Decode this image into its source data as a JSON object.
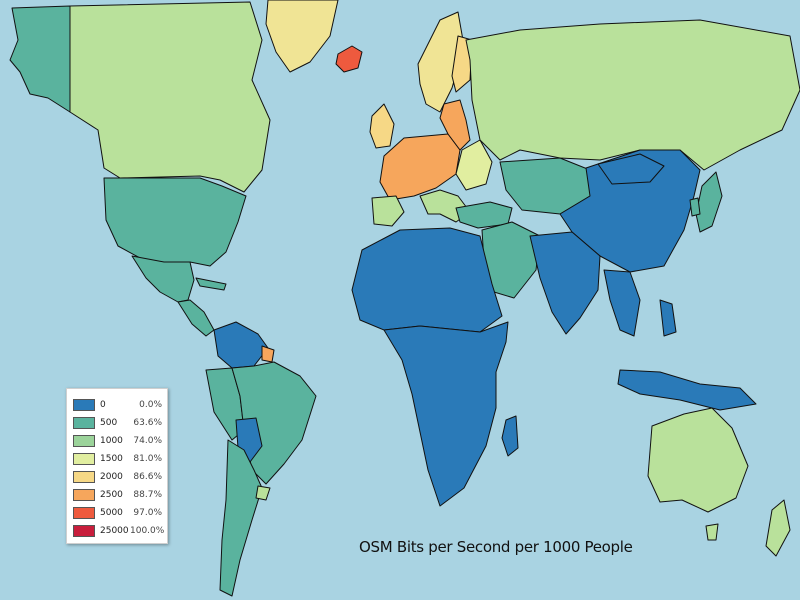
{
  "map": {
    "title": "OSM Bits per Second per 1000 People",
    "ocean_color": "#a9d3e2",
    "border_color": "#111111"
  },
  "legend": {
    "items": [
      {
        "value": "0",
        "percent": "0.0%",
        "color": "#2a7ab8"
      },
      {
        "value": "500",
        "percent": "63.6%",
        "color": "#5ab39e"
      },
      {
        "value": "1000",
        "percent": "74.0%",
        "color": "#9bd39a"
      },
      {
        "value": "1500",
        "percent": "81.0%",
        "color": "#e1eea0"
      },
      {
        "value": "2000",
        "percent": "86.6%",
        "color": "#f6d886"
      },
      {
        "value": "2500",
        "percent": "88.7%",
        "color": "#f6a65c"
      },
      {
        "value": "5000",
        "percent": "97.0%",
        "color": "#ee5a3e"
      },
      {
        "value": "25000",
        "percent": "100.0%",
        "color": "#c81e3c"
      }
    ]
  }
}
